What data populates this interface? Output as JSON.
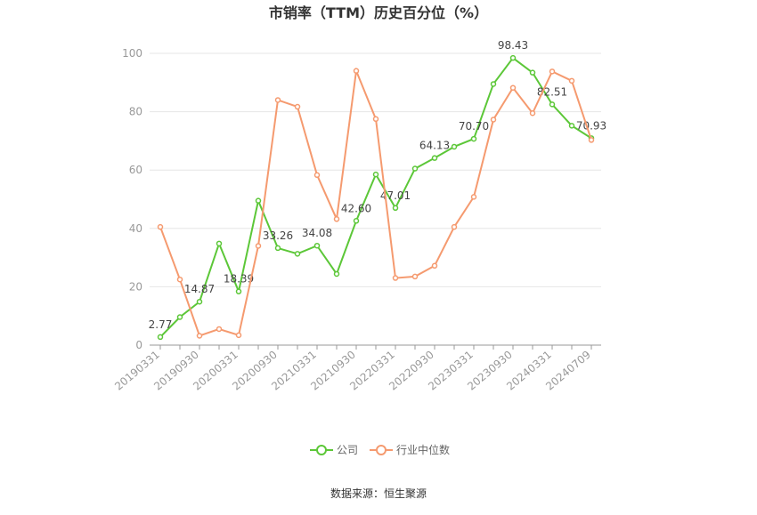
{
  "chart_data": {
    "type": "line",
    "title": "市销率（TTM）历史百分位（%）",
    "categories": [
      "20190331",
      null,
      "20190930",
      null,
      "20200331",
      null,
      "20200930",
      null,
      "20210331",
      null,
      "20210930",
      null,
      "20220331",
      null,
      "20220930",
      null,
      "20230331",
      null,
      "20230930",
      null,
      "20240331",
      null,
      "20240709"
    ],
    "series": [
      {
        "name": "公司",
        "color": "#5cc738",
        "values": [
          2.77,
          9.6,
          14.87,
          34.8,
          18.39,
          49.5,
          33.26,
          31.3,
          34.08,
          24.4,
          42.6,
          58.5,
          47.01,
          60.5,
          64.13,
          68.0,
          70.7,
          89.5,
          98.43,
          93.4,
          82.51,
          75.2,
          70.93
        ],
        "value_labels": [
          "2.77",
          null,
          "14.87",
          null,
          "18.39",
          null,
          "33.26",
          null,
          "34.08",
          null,
          "42.60",
          null,
          "47.01",
          null,
          "64.13",
          null,
          "70.70",
          null,
          "98.43",
          null,
          "82.51",
          null,
          "70.93"
        ]
      },
      {
        "name": "行业中位数",
        "color": "#f59a6f",
        "values": [
          40.5,
          22.5,
          3.2,
          5.5,
          3.4,
          34.0,
          84.0,
          81.7,
          58.3,
          43.2,
          94.0,
          77.5,
          23.0,
          23.5,
          27.2,
          40.5,
          50.8,
          77.3,
          88.2,
          79.5,
          93.8,
          90.6,
          70.3
        ]
      }
    ],
    "ylim": [
      0,
      100
    ],
    "yticks": [
      0,
      20,
      40,
      60,
      80,
      100
    ],
    "grid": true,
    "source": "数据来源：恒生聚源"
  }
}
